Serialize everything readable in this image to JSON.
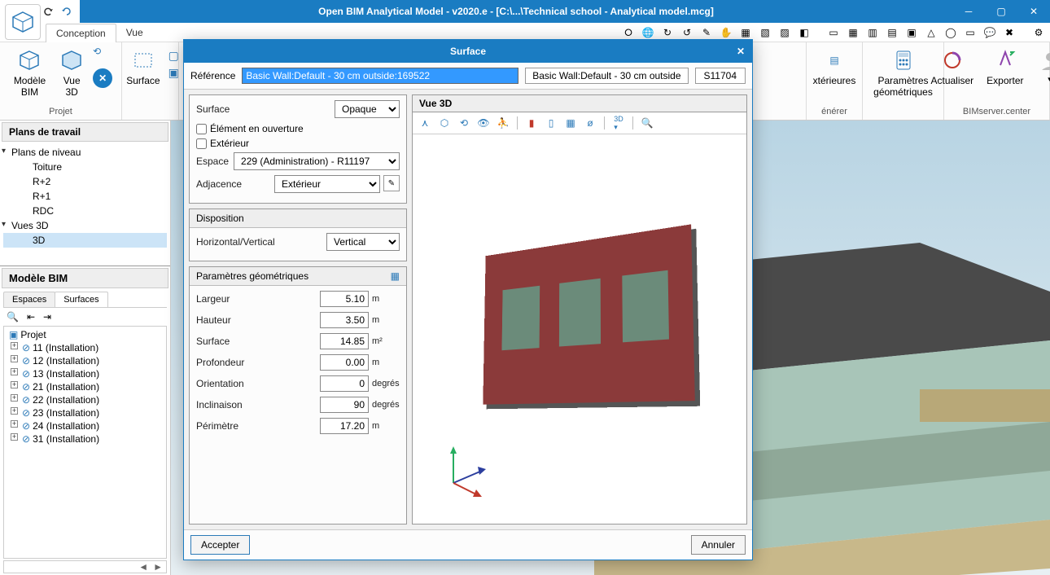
{
  "titlebar": {
    "title": "Open BIM Analytical Model - v2020.e - [C:\\...\\Technical school - Analytical model.mcg]"
  },
  "menu": {
    "tabs": [
      "Conception",
      "Vue"
    ]
  },
  "ribbon": {
    "group_projet": {
      "label": "Projet",
      "items": [
        "Modèle\nBIM",
        "Vue\n3D"
      ]
    },
    "group_surface": "Surface",
    "group_exterieures": "xtérieures",
    "group_generer_label": "énérer",
    "param_geo": "Paramètres\ngéométriques",
    "actualiser": "Actualiser",
    "exporter": "Exporter",
    "bimserver": "BIMserver.center"
  },
  "left": {
    "plans_header": "Plans de travail",
    "plans_niveau": "Plans de niveau",
    "niveaux": [
      "Toiture",
      "R+2",
      "R+1",
      "RDC"
    ],
    "vues3d": "Vues 3D",
    "vue3d_item": "3D",
    "modele_header": "Modèle BIM",
    "subtabs": [
      "Espaces",
      "Surfaces"
    ],
    "projet": "Projet",
    "installs": [
      "11 (Installation)",
      "12 (Installation)",
      "13 (Installation)",
      "21 (Installation)",
      "22 (Installation)",
      "23 (Installation)",
      "24 (Installation)",
      "31 (Installation)"
    ]
  },
  "modal": {
    "title": "Surface",
    "ref_label": "Référence",
    "ref_value": "Basic Wall:Default - 30 cm outside:169522",
    "ref_desc": "Basic Wall:Default - 30 cm outside",
    "ref_code": "S11704",
    "surface_label": "Surface",
    "surface_type": "Opaque",
    "chk_ouverture": "Élément en ouverture",
    "chk_exterieur": "Extérieur",
    "espace_label": "Espace",
    "espace_value": "229 (Administration) - R11197",
    "adjacence_label": "Adjacence",
    "adjacence_value": "Extérieur",
    "disposition_header": "Disposition",
    "hv_label": "Horizontal/Vertical",
    "hv_value": "Vertical",
    "geo_header": "Paramètres géométriques",
    "params": [
      {
        "label": "Largeur",
        "value": "5.10",
        "unit": "m"
      },
      {
        "label": "Hauteur",
        "value": "3.50",
        "unit": "m"
      },
      {
        "label": "Surface",
        "value": "14.85",
        "unit": "m²"
      },
      {
        "label": "Profondeur",
        "value": "0.00",
        "unit": "m"
      },
      {
        "label": "Orientation",
        "value": "0",
        "unit": "degrés"
      },
      {
        "label": "Inclinaison",
        "value": "90",
        "unit": "degrés"
      },
      {
        "label": "Périmètre",
        "value": "17.20",
        "unit": "m"
      }
    ],
    "vue3d_label": "Vue 3D",
    "accepter": "Accepter",
    "annuler": "Annuler"
  },
  "colors": {
    "primary": "#1a7cc2",
    "wall": "#8b3a3a",
    "window": "#6b8b7a"
  }
}
